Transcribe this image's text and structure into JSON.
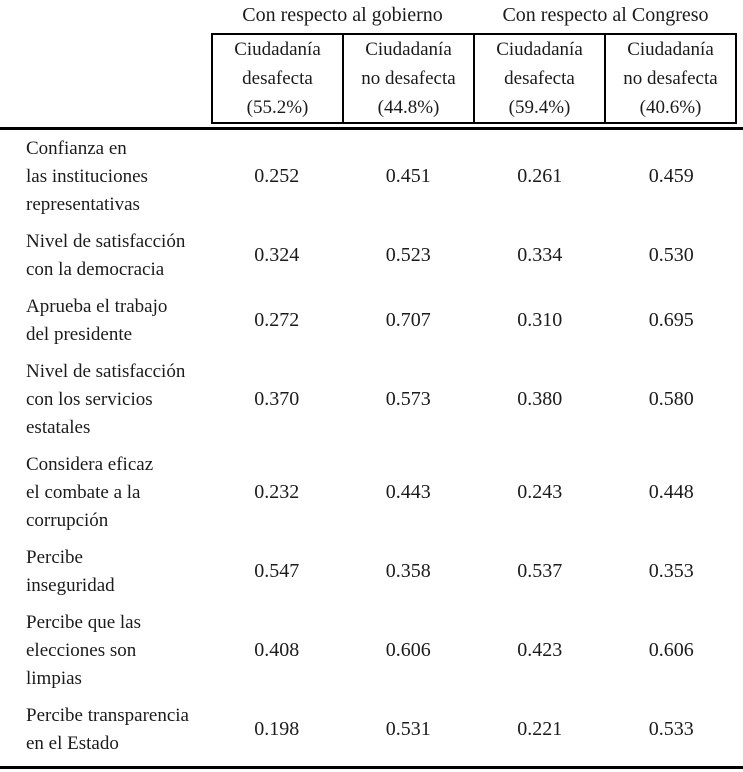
{
  "colors": {
    "text": "#1b1b1b",
    "line": "#000000",
    "background": "#ffffff"
  },
  "table": {
    "column_groups": [
      {
        "label": "Con respecto al gobierno"
      },
      {
        "label": "Con respecto al Congreso"
      }
    ],
    "columns": [
      {
        "text": "Ciudadanía\ndesafecta\n(55.2%)"
      },
      {
        "text": "Ciudadanía\nno desafecta\n(44.8%)"
      },
      {
        "text": "Ciudadanía\ndesafecta\n(59.4%)"
      },
      {
        "text": "Ciudadanía\nno desafecta\n(40.6%)"
      }
    ],
    "rows": [
      {
        "label": "Confianza en\nlas instituciones\nrepresentativas",
        "values": [
          "0.252",
          "0.451",
          "0.261",
          "0.459"
        ]
      },
      {
        "label": "Nivel de satisfacción\ncon la democracia",
        "values": [
          "0.324",
          "0.523",
          "0.334",
          "0.530"
        ]
      },
      {
        "label": "Aprueba el trabajo\ndel presidente",
        "values": [
          "0.272",
          "0.707",
          "0.310",
          "0.695"
        ]
      },
      {
        "label": "Nivel de satisfacción\ncon los servicios\nestatales",
        "values": [
          "0.370",
          "0.573",
          "0.380",
          "0.580"
        ]
      },
      {
        "label": "Considera eficaz\nel combate a la\ncorrupción",
        "values": [
          "0.232",
          "0.443",
          "0.243",
          "0.448"
        ]
      },
      {
        "label": "Percibe\ninseguridad",
        "values": [
          "0.547",
          "0.358",
          "0.537",
          "0.353"
        ]
      },
      {
        "label": "Percibe que las\nelecciones son\nlimpias",
        "values": [
          "0.408",
          "0.606",
          "0.423",
          "0.606"
        ]
      },
      {
        "label": "Percibe transparencia\nen el Estado",
        "values": [
          "0.198",
          "0.531",
          "0.221",
          "0.533"
        ]
      }
    ]
  }
}
